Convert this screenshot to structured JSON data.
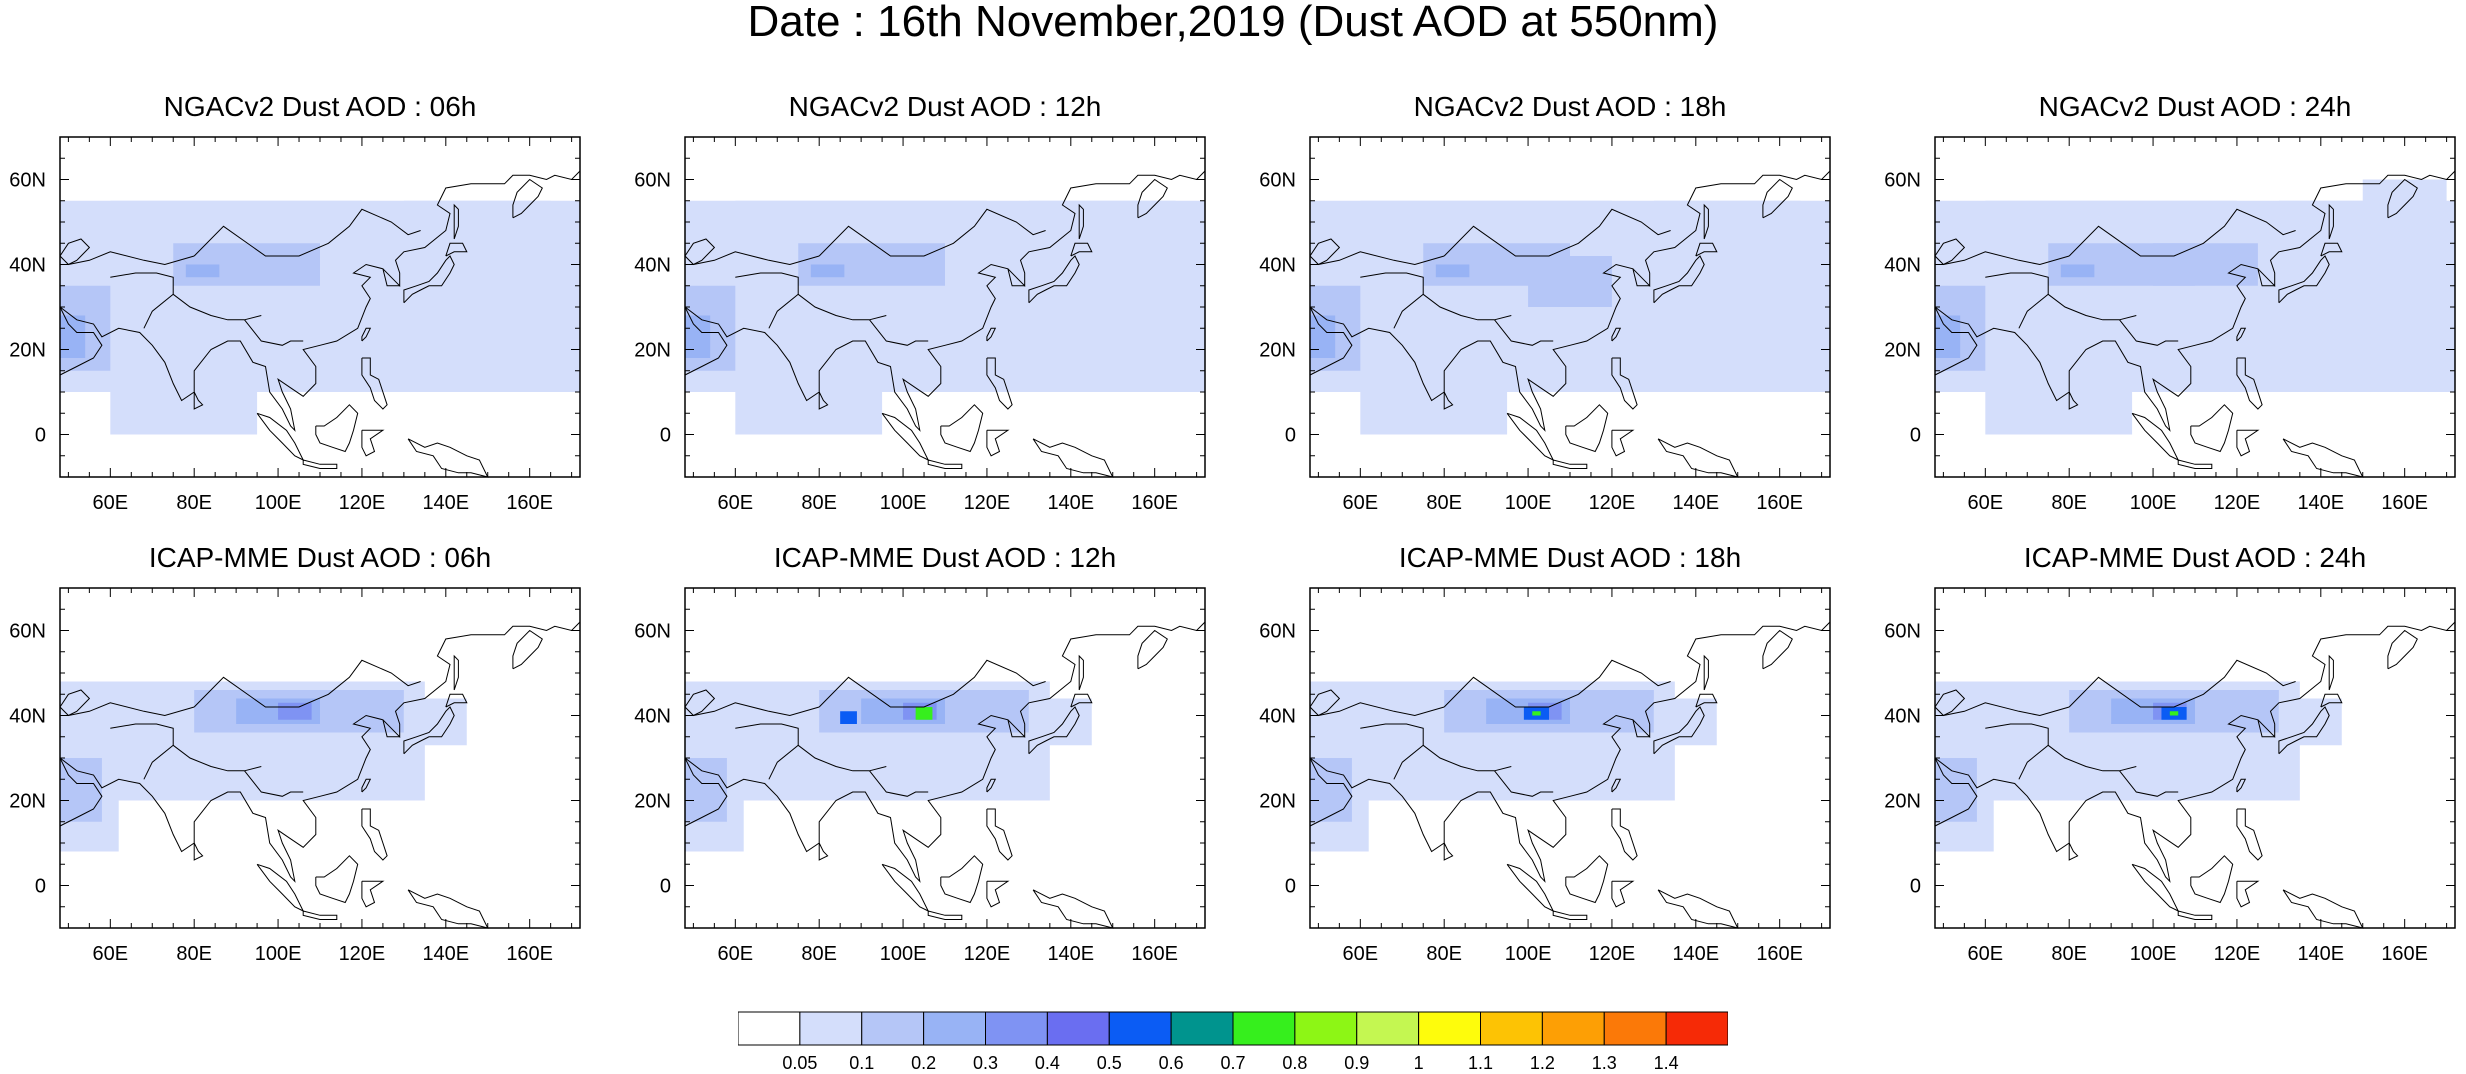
{
  "title": "Date : 16th November,2019 (Dust AOD at 550nm)",
  "panels": [
    {
      "title": "NGACv2 Dust AOD : 06h",
      "model": "NGACv2",
      "hour": "06h"
    },
    {
      "title": "NGACv2 Dust AOD : 12h",
      "model": "NGACv2",
      "hour": "12h"
    },
    {
      "title": "NGACv2 Dust AOD : 18h",
      "model": "NGACv2",
      "hour": "18h"
    },
    {
      "title": "NGACv2 Dust AOD : 24h",
      "model": "NGACv2",
      "hour": "24h"
    },
    {
      "title": "ICAP-MME Dust AOD : 06h",
      "model": "ICAP-MME",
      "hour": "06h"
    },
    {
      "title": "ICAP-MME Dust AOD : 12h",
      "model": "ICAP-MME",
      "hour": "12h"
    },
    {
      "title": "ICAP-MME Dust AOD : 18h",
      "model": "ICAP-MME",
      "hour": "18h"
    },
    {
      "title": "ICAP-MME Dust AOD : 24h",
      "model": "ICAP-MME",
      "hour": "24h"
    }
  ],
  "map": {
    "lon_range": [
      48,
      172
    ],
    "lat_range": [
      -10,
      70
    ],
    "lon_ticks": [
      "60E",
      "80E",
      "100E",
      "120E",
      "140E",
      "160E"
    ],
    "lat_ticks": [
      "60N",
      "40N",
      "20N",
      "0"
    ]
  },
  "colorbar": {
    "labels": [
      "0.05",
      "0.1",
      "0.2",
      "0.3",
      "0.4",
      "0.5",
      "0.6",
      "0.7",
      "0.8",
      "0.9",
      "1",
      "1.1",
      "1.2",
      "1.3",
      "1.4"
    ],
    "colors": [
      "#ffffff",
      "#d4defb",
      "#b5c6f7",
      "#98b3f5",
      "#7f93f3",
      "#6a6ef1",
      "#0b5cf4",
      "#00948e",
      "#36ef1d",
      "#8df615",
      "#c4f751",
      "#fefc0c",
      "#fdc304",
      "#fd9f05",
      "#fb7908",
      "#f62a06"
    ]
  }
}
